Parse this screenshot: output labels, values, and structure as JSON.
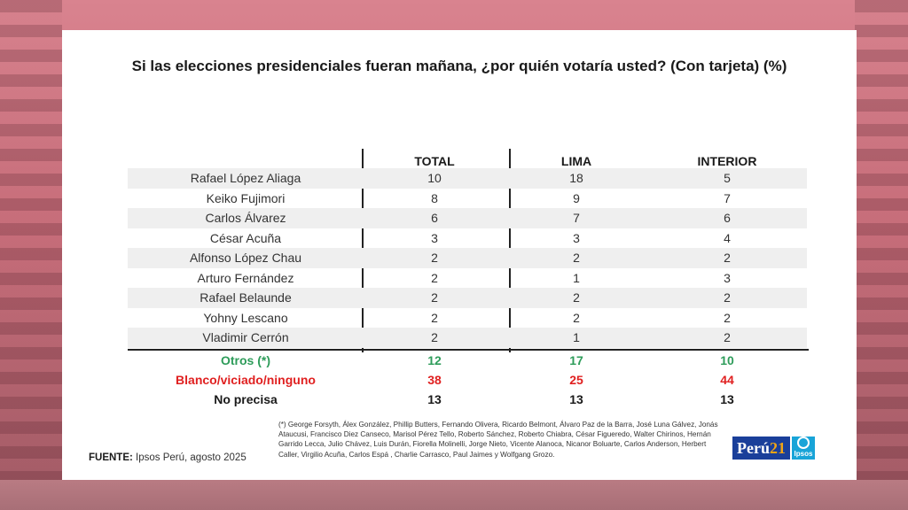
{
  "title": "Si las elecciones presidenciales fueran mañana, ¿por quién votaría usted? (Con tarjeta) (%)",
  "columns": [
    "TOTAL",
    "LIMA",
    "INTERIOR"
  ],
  "rows": [
    {
      "name": "Rafael López Aliaga",
      "total": "10",
      "lima": "18",
      "interior": "5"
    },
    {
      "name": "Keiko Fujimori",
      "total": "8",
      "lima": "9",
      "interior": "7"
    },
    {
      "name": "Carlos Álvarez",
      "total": "6",
      "lima": "7",
      "interior": "6"
    },
    {
      "name": "César Acuña",
      "total": "3",
      "lima": "3",
      "interior": "4"
    },
    {
      "name": "Alfonso López Chau",
      "total": "2",
      "lima": "2",
      "interior": "2"
    },
    {
      "name": "Arturo Fernández",
      "total": "2",
      "lima": "1",
      "interior": "3"
    },
    {
      "name": "Rafael Belaunde",
      "total": "2",
      "lima": "2",
      "interior": "2"
    },
    {
      "name": "Yohny Lescano",
      "total": "2",
      "lima": "2",
      "interior": "2"
    },
    {
      "name": "Vladimir Cerrón",
      "total": "2",
      "lima": "1",
      "interior": "2"
    }
  ],
  "summary": {
    "otros": {
      "name": "Otros (*)",
      "total": "12",
      "lima": "17",
      "interior": "10",
      "color": "#2e9c5a"
    },
    "blanco": {
      "name": "Blanco/viciado/ninguno",
      "total": "38",
      "lima": "25",
      "interior": "44",
      "color": "#e02020"
    },
    "noprecisa": {
      "name": "No precisa",
      "total": "13",
      "lima": "13",
      "interior": "13"
    }
  },
  "footnote": "(*) George Forsyth, Álex González, Phillip Butters, Fernando Olivera, Ricardo Belmont, Álvaro Paz de la Barra, José Luna Gálvez, Jonás Ataucusi, Francisco Diez Canseco, Marisol Pérez Tello, Roberto Sánchez, Roberto Chiabra, César Figueredo, Walter Chirinos, Hernán Garrido Lecca, Julio Chávez, Luis Durán, Fiorella Molinelli, Jorge Nieto, Vicente Alanoca, Nicanor Boluarte, Carlos Anderson, Herbert Caller, Virgilio Acuña, Carlos Espá , Charlie Carrasco, Paul Jaimes y Wolfgang Grozo.",
  "source": {
    "label": "FUENTE:",
    "text": " Ipsos Perú, agosto 2025"
  },
  "logos": {
    "peru_text": "Perú",
    "peru_num": "21",
    "ipsos_text": "Ipsos"
  }
}
